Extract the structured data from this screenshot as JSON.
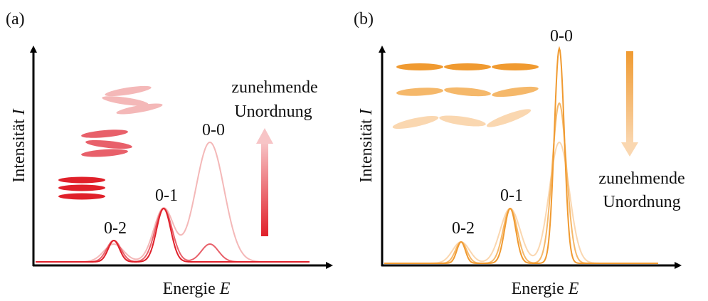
{
  "panels": [
    {
      "label": "(a)",
      "y_label": "Intensität",
      "y_symbol": "I",
      "x_label": "Energie",
      "x_symbol": "E",
      "peaks": [
        "0-2",
        "0-1",
        "0-0"
      ],
      "annotation": [
        "zunehmende",
        "Unordnung"
      ]
    },
    {
      "label": "(b)",
      "y_label": "Intensität",
      "y_symbol": "I",
      "x_label": "Energie",
      "x_symbol": "E",
      "peaks": [
        "0-2",
        "0-1",
        "0-0"
      ],
      "annotation": [
        "zunehmende",
        "Unordnung"
      ]
    }
  ]
}
